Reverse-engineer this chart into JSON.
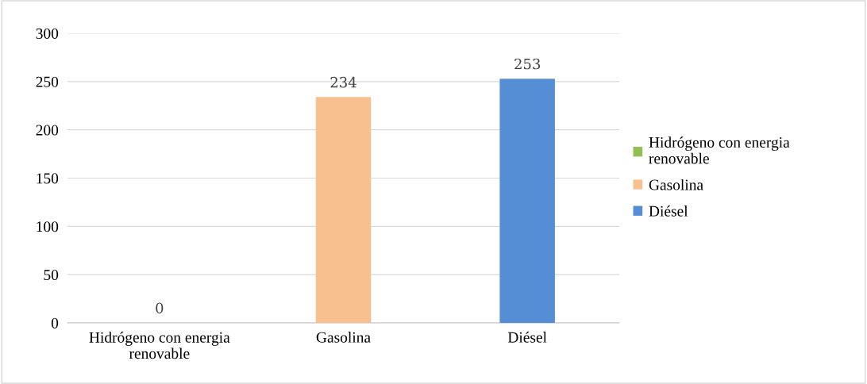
{
  "chart_data": {
    "type": "bar",
    "categories": [
      "Hidrógeno con energia renovable",
      "Gasolina",
      "Diésel"
    ],
    "series": [
      {
        "name": "Hidrógeno con energia renovable",
        "color": "#92c050",
        "values": [
          0,
          null,
          null
        ]
      },
      {
        "name": "Gasolina",
        "color": "#f9c08f",
        "values": [
          null,
          234,
          null
        ]
      },
      {
        "name": "Diésel",
        "color": "#558ed5",
        "values": [
          null,
          null,
          253
        ]
      }
    ],
    "ylim": [
      0,
      300
    ],
    "yticks": [
      0,
      50,
      100,
      150,
      200,
      250,
      300
    ],
    "grid": "y",
    "legend": "right",
    "data_labels": true
  }
}
